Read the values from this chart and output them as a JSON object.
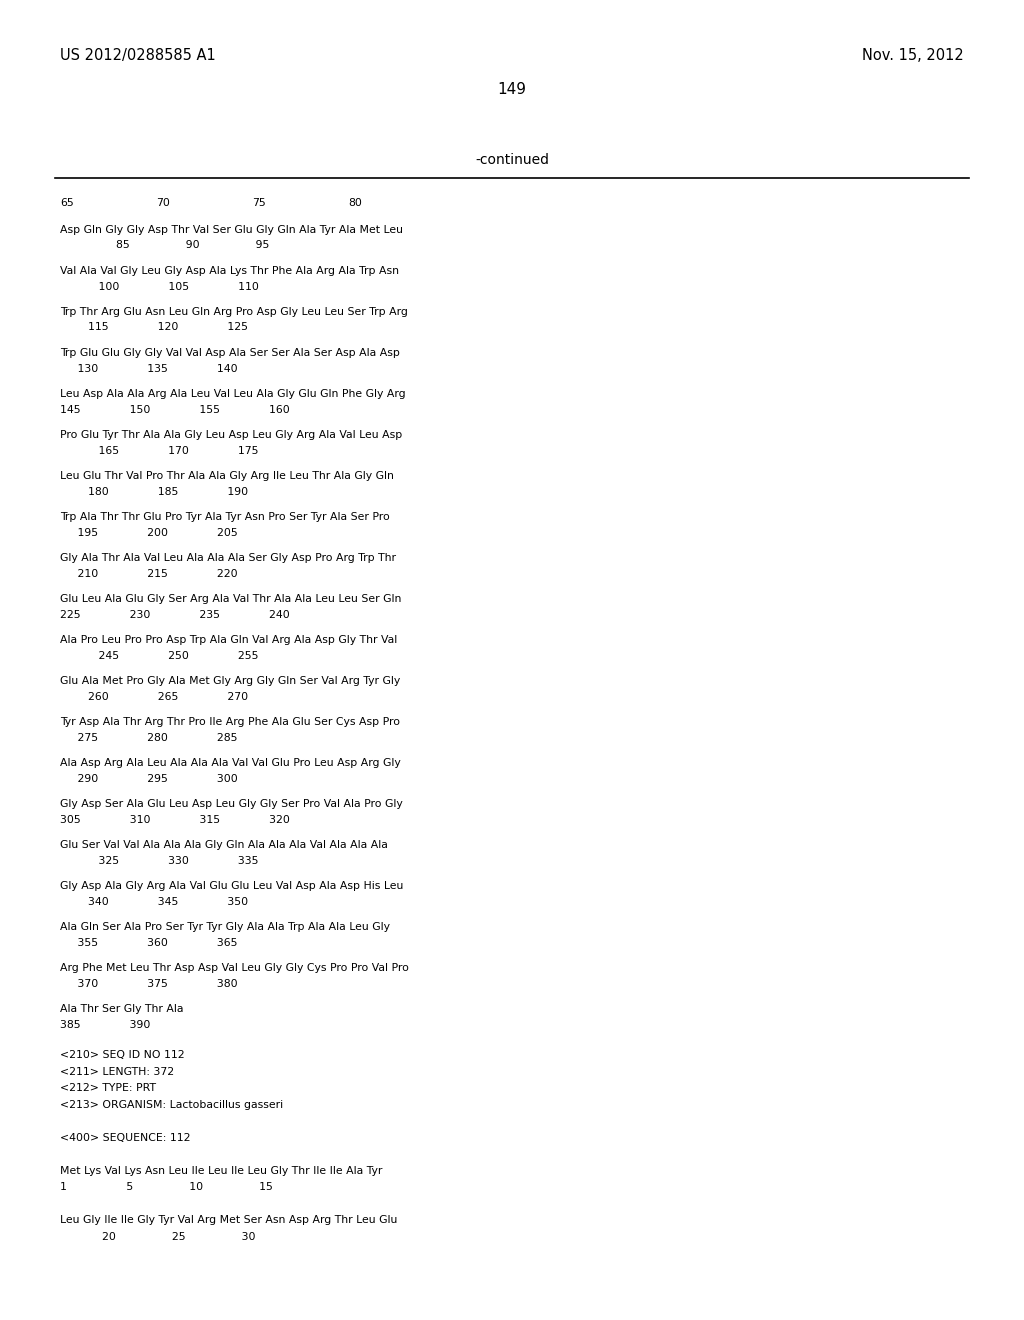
{
  "header_left": "US 2012/0288585 A1",
  "header_right": "Nov. 15, 2012",
  "page_number": "149",
  "continued_label": "-continued",
  "background_color": "#ffffff",
  "text_color": "#000000",
  "font_family": "monospace",
  "header_fontsize": 10.5,
  "page_num_fontsize": 11,
  "continued_fontsize": 10,
  "body_fontsize": 7.8,
  "sequence_blocks": [
    {
      "seq_line": "Asp Gln Gly Gly Asp Thr Val Ser Glu Gly Gln Ala Tyr Ala Met Leu",
      "num_line": "                85                90                95"
    },
    {
      "seq_line": "Val Ala Val Gly Leu Gly Asp Ala Lys Thr Phe Ala Arg Ala Trp Asn",
      "num_line": "           100              105              110"
    },
    {
      "seq_line": "Trp Thr Arg Glu Asn Leu Gln Arg Pro Asp Gly Leu Leu Ser Trp Arg",
      "num_line": "        115              120              125"
    },
    {
      "seq_line": "Trp Glu Glu Gly Gly Val Val Asp Ala Ser Ser Ala Ser Asp Ala Asp",
      "num_line": "     130              135              140"
    },
    {
      "seq_line": "Leu Asp Ala Ala Arg Ala Leu Val Leu Ala Gly Glu Gln Phe Gly Arg",
      "num_line": "145              150              155              160"
    },
    {
      "seq_line": "Pro Glu Tyr Thr Ala Ala Gly Leu Asp Leu Gly Arg Ala Val Leu Asp",
      "num_line": "           165              170              175"
    },
    {
      "seq_line": "Leu Glu Thr Val Pro Thr Ala Ala Gly Arg Ile Leu Thr Ala Gly Gln",
      "num_line": "        180              185              190"
    },
    {
      "seq_line": "Trp Ala Thr Thr Glu Pro Tyr Ala Tyr Asn Pro Ser Tyr Ala Ser Pro",
      "num_line": "     195              200              205"
    },
    {
      "seq_line": "Gly Ala Thr Ala Val Leu Ala Ala Ala Ser Gly Asp Pro Arg Trp Thr",
      "num_line": "     210              215              220"
    },
    {
      "seq_line": "Glu Leu Ala Glu Gly Ser Arg Ala Val Thr Ala Ala Leu Leu Ser Gln",
      "num_line": "225              230              235              240"
    },
    {
      "seq_line": "Ala Pro Leu Pro Pro Asp Trp Ala Gln Val Arg Ala Asp Gly Thr Val",
      "num_line": "           245              250              255"
    },
    {
      "seq_line": "Glu Ala Met Pro Gly Ala Met Gly Arg Gly Gln Ser Val Arg Tyr Gly",
      "num_line": "        260              265              270"
    },
    {
      "seq_line": "Tyr Asp Ala Thr Arg Thr Pro Ile Arg Phe Ala Glu Ser Cys Asp Pro",
      "num_line": "     275              280              285"
    },
    {
      "seq_line": "Ala Asp Arg Ala Leu Ala Ala Ala Val Val Glu Pro Leu Asp Arg Gly",
      "num_line": "     290              295              300"
    },
    {
      "seq_line": "Gly Asp Ser Ala Glu Leu Asp Leu Gly Gly Ser Pro Val Ala Pro Gly",
      "num_line": "305              310              315              320"
    },
    {
      "seq_line": "Glu Ser Val Val Ala Ala Ala Gly Gln Ala Ala Ala Val Ala Ala Ala",
      "num_line": "           325              330              335"
    },
    {
      "seq_line": "Gly Asp Ala Gly Arg Ala Val Glu Glu Leu Val Asp Ala Asp His Leu",
      "num_line": "        340              345              350"
    },
    {
      "seq_line": "Ala Gln Ser Ala Pro Ser Tyr Tyr Gly Ala Ala Trp Ala Ala Leu Gly",
      "num_line": "     355              360              365"
    },
    {
      "seq_line": "Arg Phe Met Leu Thr Asp Asp Val Leu Gly Gly Cys Pro Pro Val Pro",
      "num_line": "     370              375              380"
    },
    {
      "seq_line": "Ala Thr Ser Gly Thr Ala",
      "num_line": "385              390"
    }
  ],
  "metadata_lines": [
    "<210> SEQ ID NO 112",
    "<211> LENGTH: 372",
    "<212> TYPE: PRT",
    "<213> ORGANISM: Lactobacillus gasseri",
    "",
    "<400> SEQUENCE: 112",
    "",
    "Met Lys Val Lys Asn Leu Ile Leu Ile Leu Gly Thr Ile Ile Ala Tyr",
    "1                 5                10                15",
    "",
    "Leu Gly Ile Ile Gly Tyr Val Arg Met Ser Asn Asp Arg Thr Leu Glu",
    "            20                25                30"
  ]
}
